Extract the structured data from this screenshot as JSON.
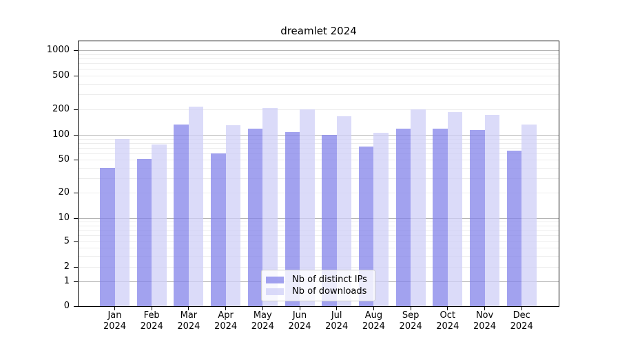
{
  "chart_data": {
    "type": "bar",
    "title": "dreamlet 2024",
    "year_label": "2024",
    "months": [
      "Jan",
      "Feb",
      "Mar",
      "Apr",
      "May",
      "Jun",
      "Jul",
      "Aug",
      "Sep",
      "Oct",
      "Nov",
      "Dec"
    ],
    "series": [
      {
        "name": "Nb of distinct IPs",
        "color": "#8383E9",
        "alpha": 0.75,
        "values": [
          40,
          51,
          132,
          60,
          118,
          107,
          100,
          72,
          118,
          118,
          115,
          64
        ]
      },
      {
        "name": "Nb of downloads",
        "color": "#CFCFF7",
        "alpha": 0.75,
        "values": [
          90,
          76,
          215,
          130,
          208,
          200,
          166,
          106,
          200,
          186,
          171,
          132
        ]
      }
    ],
    "yscale": "symlog",
    "ylim": [
      0,
      1300
    ],
    "y_ticks": [
      {
        "label": "1000",
        "value": 1000
      },
      {
        "label": "500",
        "value": 500
      },
      {
        "label": "200",
        "value": 200
      },
      {
        "label": "100",
        "value": 100
      },
      {
        "label": "50",
        "value": 50
      },
      {
        "label": "20",
        "value": 20
      },
      {
        "label": "10",
        "value": 10
      },
      {
        "label": "5",
        "value": 5
      },
      {
        "label": "2",
        "value": 2
      },
      {
        "label": "1",
        "value": 1
      },
      {
        "label": "0",
        "value": 0
      }
    ],
    "grid": true,
    "grid_major_values": [
      1000,
      100,
      10,
      1
    ],
    "grid_minor_values": [
      900,
      800,
      700,
      600,
      500,
      400,
      300,
      200,
      90,
      80,
      70,
      60,
      50,
      40,
      30,
      20,
      9,
      8,
      7,
      6,
      5,
      4,
      3,
      2
    ],
    "legend_position": "lower center",
    "colors": {
      "bar_dark_blend": "#A4A4EF",
      "bar_light_blend": "#DBDBF8",
      "grid_major": "#B3B3B3",
      "grid_minor": "#ECECEC",
      "axis": "#000000"
    }
  }
}
